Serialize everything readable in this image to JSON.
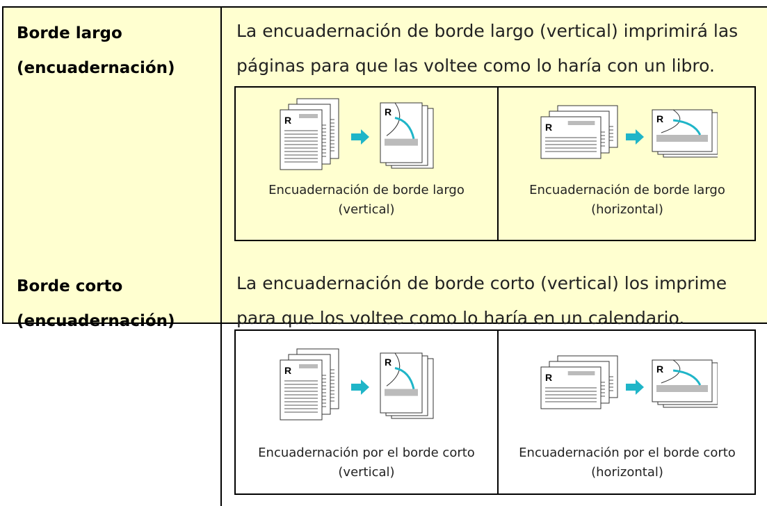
{
  "rows": [
    {
      "label": [
        "Borde largo",
        "(encuadernación)"
      ],
      "description": "La encuadernación de borde largo (vertical) imprimirá las páginas para que las voltee como lo haría con un libro.",
      "images": [
        {
          "left_letter": "R",
          "right_letter": "R",
          "caption": "Encuadernación de borde largo (vertical)"
        },
        {
          "left_letter": "R",
          "right_letter": "R",
          "caption": "Encuadernación de borde largo (horizontal)"
        }
      ]
    },
    {
      "label": [
        "Borde corto",
        "(encuadernación)"
      ],
      "description": "La encuadernación de borde corto (vertical) los imprime para que los voltee como lo haría en un calendario.",
      "images": [
        {
          "left_letter": "R",
          "right_letter": "R",
          "caption": "Encuadernación por el borde corto (vertical)"
        },
        {
          "left_letter": "R",
          "right_letter": "R",
          "caption": "Encuadernación por el borde corto (horizontal)"
        }
      ]
    }
  ]
}
